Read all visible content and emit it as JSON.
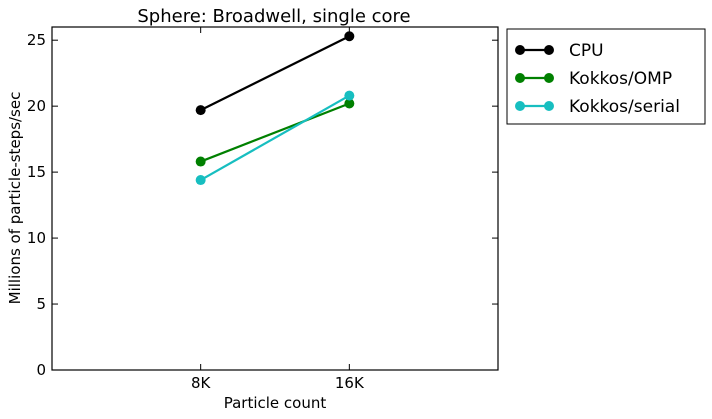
{
  "chart_data": {
    "type": "line",
    "title": "Sphere: Broadwell, single core",
    "xlabel": "Particle count",
    "ylabel": "Millions of particle-steps/sec",
    "categories": [
      "8K",
      "16K"
    ],
    "ylim": [
      0,
      26
    ],
    "yticks": [
      0,
      5,
      10,
      15,
      20,
      25
    ],
    "grid": false,
    "legend_position": "outside-right-top",
    "series": [
      {
        "name": "CPU",
        "color": "#000000",
        "values": [
          19.7,
          25.3
        ]
      },
      {
        "name": "Kokkos/OMP",
        "color": "#008000",
        "values": [
          15.8,
          20.2
        ]
      },
      {
        "name": "Kokkos/serial",
        "color": "#17bec0",
        "values": [
          14.4,
          20.8
        ]
      }
    ]
  }
}
